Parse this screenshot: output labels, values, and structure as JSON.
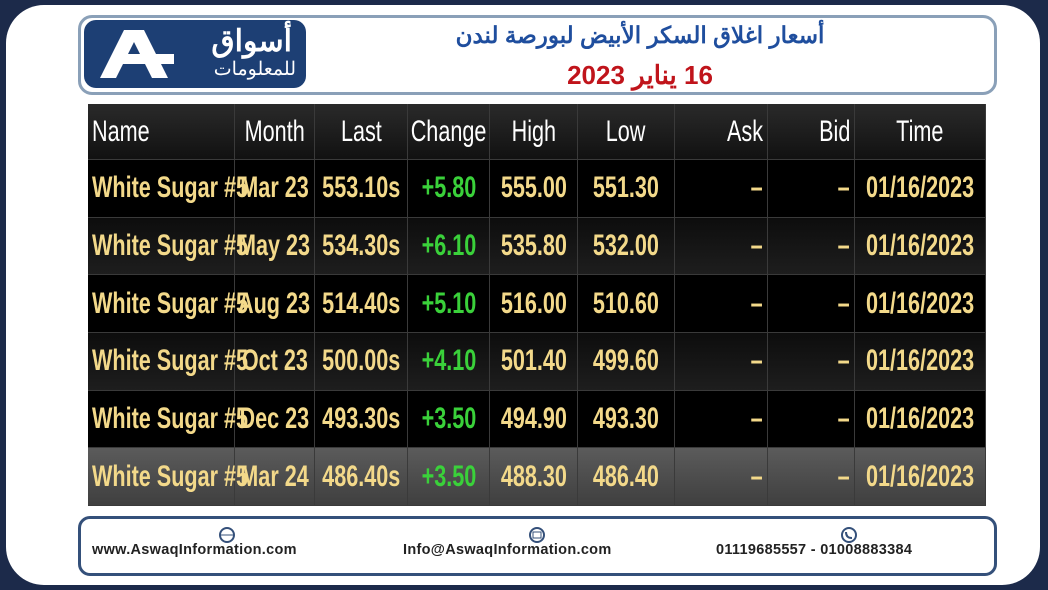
{
  "header": {
    "logo_name": "أسواق",
    "logo_sub": "للمعلومات",
    "title": "أسعار اغلاق السكر الأبيض لبورصة لندن",
    "date": "16 يناير 2023"
  },
  "table": {
    "columns": [
      "Name",
      "Month",
      "Last",
      "Change",
      "High",
      "Low",
      "Ask",
      "Bid",
      "Time"
    ],
    "rows": [
      [
        "White Sugar #5",
        "Mar 23",
        "553.10s",
        "+5.80",
        "555.00",
        "551.30",
        "–",
        "–",
        "01/16/2023"
      ],
      [
        "White Sugar #5",
        "May 23",
        "534.30s",
        "+6.10",
        "535.80",
        "532.00",
        "–",
        "–",
        "01/16/2023"
      ],
      [
        "White Sugar #5",
        "Aug 23",
        "514.40s",
        "+5.10",
        "516.00",
        "510.60",
        "–",
        "–",
        "01/16/2023"
      ],
      [
        "White Sugar #5",
        "Oct 23",
        "500.00s",
        "+4.10",
        "501.40",
        "499.60",
        "–",
        "–",
        "01/16/2023"
      ],
      [
        "White Sugar #5",
        "Dec 23",
        "493.30s",
        "+3.50",
        "494.90",
        "493.30",
        "–",
        "–",
        "01/16/2023"
      ],
      [
        "White Sugar #5",
        "Mar 24",
        "486.40s",
        "+3.50",
        "488.30",
        "486.40",
        "–",
        "–",
        "01/16/2023"
      ]
    ]
  },
  "footer": {
    "website": "www.AswaqInformation.com",
    "email": "Info@AswaqInformation.com",
    "phone": "01119685557 - 01008883384"
  }
}
